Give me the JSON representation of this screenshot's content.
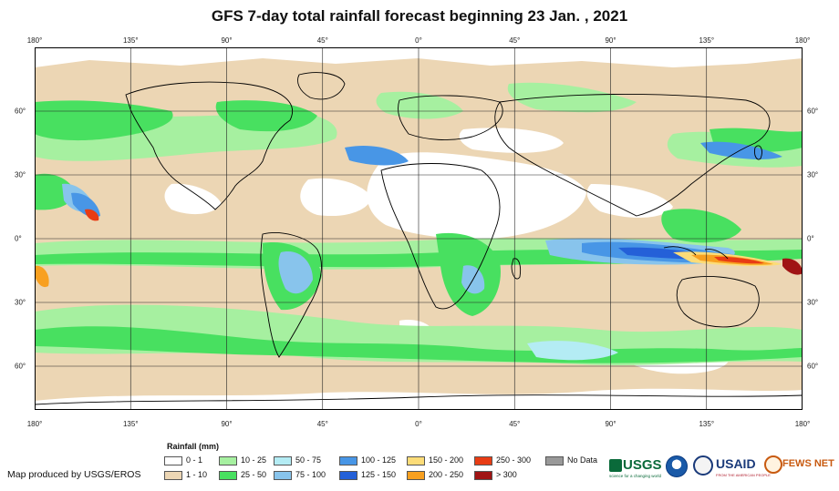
{
  "title": "GFS 7-day total rainfall forecast beginning 23 Jan. , 2021",
  "lon_labels_top": [
    "180°",
    "135°",
    "90°",
    "45°",
    "0°",
    "45°",
    "90°",
    "135°",
    "180°"
  ],
  "lon_labels_bottom": [
    "180°",
    "135°",
    "90°",
    "45°",
    "0°",
    "45°",
    "90°",
    "135°",
    "180°"
  ],
  "lat_labels": [
    "60°",
    "30°",
    "0°",
    "30°",
    "60°"
  ],
  "legend": {
    "title": "Rainfall (mm)",
    "items": [
      {
        "label": "0 - 1",
        "color": "#ffffff"
      },
      {
        "label": "1 - 10",
        "color": "#ecd6b4"
      },
      {
        "label": "10 - 25",
        "color": "#a6f0a0"
      },
      {
        "label": "25 - 50",
        "color": "#48e060"
      },
      {
        "label": "50 - 75",
        "color": "#b4ecf4"
      },
      {
        "label": "75 - 100",
        "color": "#88c4ec"
      },
      {
        "label": "100 - 125",
        "color": "#4896e6"
      },
      {
        "label": "125 - 150",
        "color": "#2460d8"
      },
      {
        "label": "150 - 200",
        "color": "#fcdc78"
      },
      {
        "label": "200 - 250",
        "color": "#f8a020"
      },
      {
        "label": "250 - 300",
        "color": "#e83c14"
      },
      {
        "label": "> 300",
        "color": "#a01414"
      },
      {
        "label": "No Data",
        "color": "#999999"
      }
    ]
  },
  "credit": "Map produced by USGS/EROS",
  "logos": {
    "usgs": "USGS",
    "usgs_tagline": "science for a changing world",
    "usaid": "USAID",
    "usaid_tagline": "FROM THE AMERICAN PEOPLE",
    "fewsnet": "FEWS NET"
  },
  "icons": [
    "noaa-logo-icon",
    "dept-of-state-seal-icon",
    "fewsnet-globe-icon"
  ]
}
